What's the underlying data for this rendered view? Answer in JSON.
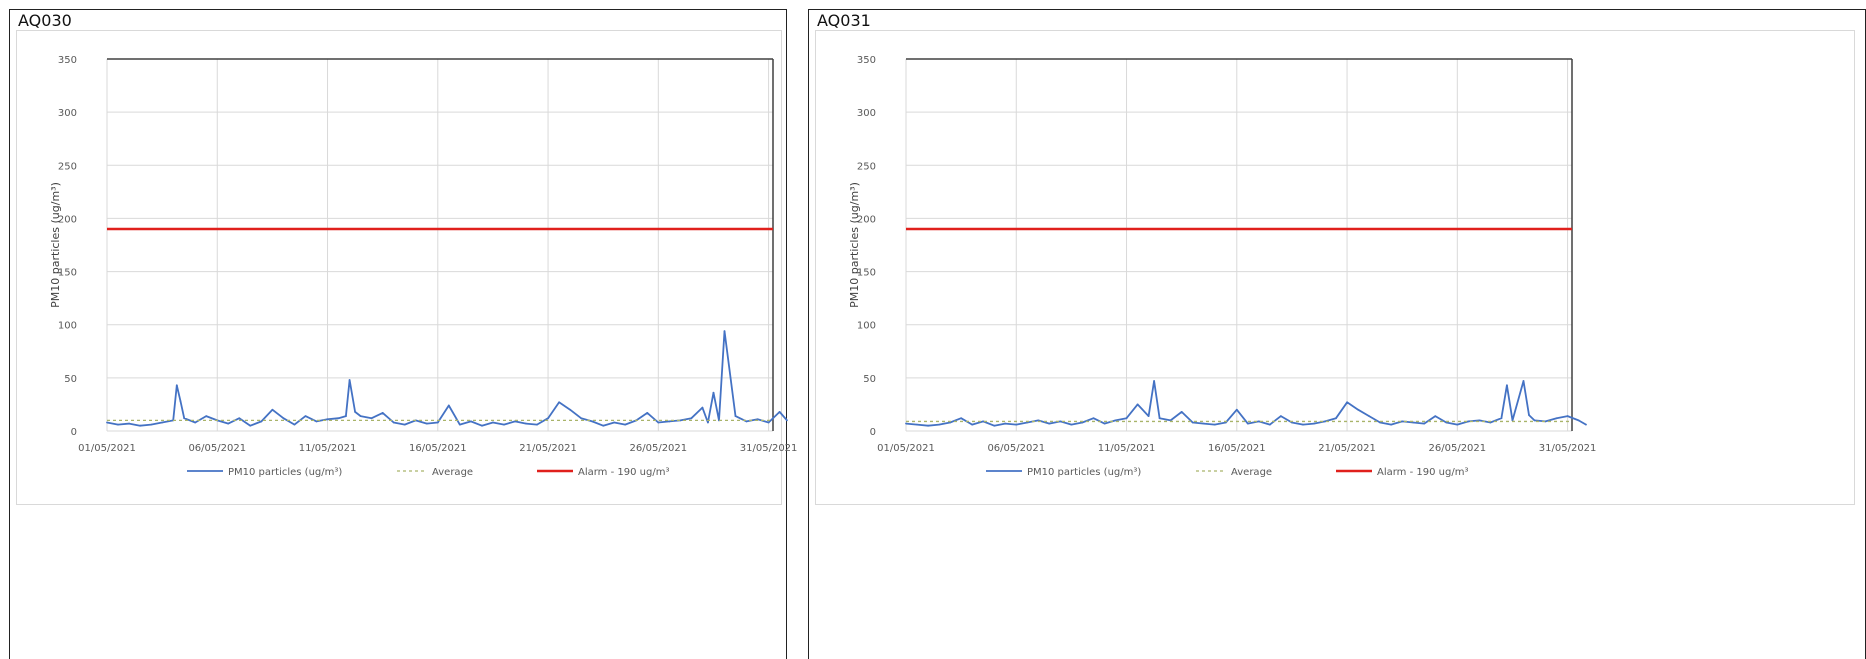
{
  "panels": [
    {
      "label": "AQ030",
      "chart_data": {
        "type": "line",
        "title": "",
        "xlabel": "",
        "ylabel": "PM10 particles (ug/m³)",
        "ylim": [
          0,
          350
        ],
        "yticks": [
          0,
          50,
          100,
          150,
          200,
          250,
          300,
          350
        ],
        "xlim": [
          "2021-05-01",
          "2021-05-31"
        ],
        "xtick_labels": [
          "01/05/2021",
          "06/05/2021",
          "11/05/2021",
          "16/05/2021",
          "21/05/2021",
          "26/05/2021",
          "31/05/2021"
        ],
        "grid": true,
        "legend_position": "bottom",
        "series": [
          {
            "name": "PM10 particles (ug/m³)",
            "style": "solid",
            "color": "#4472c4",
            "x": [
              "2021-05-01 00:00",
              "2021-05-01 12:00",
              "2021-05-02 00:00",
              "2021-05-02 12:00",
              "2021-05-03 00:00",
              "2021-05-03 12:00",
              "2021-05-04 00:00",
              "2021-05-04 04:00",
              "2021-05-04 08:00",
              "2021-05-04 12:00",
              "2021-05-05 00:00",
              "2021-05-05 12:00",
              "2021-05-06 00:00",
              "2021-05-06 12:00",
              "2021-05-07 00:00",
              "2021-05-07 12:00",
              "2021-05-08 00:00",
              "2021-05-08 12:00",
              "2021-05-09 00:00",
              "2021-05-09 12:00",
              "2021-05-10 00:00",
              "2021-05-10 12:00",
              "2021-05-11 00:00",
              "2021-05-11 12:00",
              "2021-05-11 20:00",
              "2021-05-12 00:00",
              "2021-05-12 06:00",
              "2021-05-12 12:00",
              "2021-05-13 00:00",
              "2021-05-13 12:00",
              "2021-05-14 00:00",
              "2021-05-14 12:00",
              "2021-05-15 00:00",
              "2021-05-15 12:00",
              "2021-05-16 00:00",
              "2021-05-16 12:00",
              "2021-05-17 00:00",
              "2021-05-17 12:00",
              "2021-05-18 00:00",
              "2021-05-18 12:00",
              "2021-05-19 00:00",
              "2021-05-19 12:00",
              "2021-05-20 00:00",
              "2021-05-20 12:00",
              "2021-05-21 00:00",
              "2021-05-21 12:00",
              "2021-05-22 00:00",
              "2021-05-22 12:00",
              "2021-05-23 00:00",
              "2021-05-23 12:00",
              "2021-05-24 00:00",
              "2021-05-24 12:00",
              "2021-05-25 00:00",
              "2021-05-25 12:00",
              "2021-05-26 00:00",
              "2021-05-26 12:00",
              "2021-05-27 00:00",
              "2021-05-27 12:00",
              "2021-05-28 00:00",
              "2021-05-28 06:00",
              "2021-05-28 12:00",
              "2021-05-28 18:00",
              "2021-05-29 00:00",
              "2021-05-29 12:00",
              "2021-05-30 00:00",
              "2021-05-30 12:00",
              "2021-05-31 00:00",
              "2021-05-31 12:00",
              "2021-05-31 20:00"
            ],
            "y": [
              8,
              6,
              7,
              5,
              6,
              8,
              10,
              43,
              28,
              12,
              8,
              14,
              10,
              7,
              12,
              5,
              9,
              20,
              12,
              6,
              14,
              9,
              11,
              12,
              14,
              48,
              18,
              14,
              12,
              17,
              8,
              6,
              10,
              7,
              8,
              24,
              6,
              9,
              5,
              8,
              6,
              9,
              7,
              6,
              12,
              27,
              20,
              12,
              9,
              5,
              8,
              6,
              10,
              17,
              8,
              9,
              10,
              12,
              22,
              8,
              36,
              10,
              94,
              14,
              9,
              11,
              8,
              18,
              10
            ]
          },
          {
            "name": "Average",
            "style": "dashed",
            "color": "#a9b46a",
            "value": 10
          },
          {
            "name": "Alarm - 190 ug/m³",
            "style": "solid",
            "color": "#e0201c",
            "value": 190
          }
        ]
      }
    },
    {
      "label": "AQ031",
      "chart_data": {
        "type": "line",
        "title": "",
        "xlabel": "",
        "ylabel": "PM10 particles (ug/m³)",
        "ylim": [
          0,
          350
        ],
        "yticks": [
          0,
          50,
          100,
          150,
          200,
          250,
          300,
          350
        ],
        "xlim": [
          "2021-05-01",
          "2021-05-31"
        ],
        "xtick_labels": [
          "01/05/2021",
          "06/05/2021",
          "11/05/2021",
          "16/05/2021",
          "21/05/2021",
          "26/05/2021",
          "31/05/2021"
        ],
        "grid": true,
        "legend_position": "bottom",
        "series": [
          {
            "name": "PM10 particles (ug/m³)",
            "style": "solid",
            "color": "#4472c4",
            "x": [
              "2021-05-01 00:00",
              "2021-05-01 12:00",
              "2021-05-02 00:00",
              "2021-05-02 12:00",
              "2021-05-03 00:00",
              "2021-05-03 12:00",
              "2021-05-04 00:00",
              "2021-05-04 12:00",
              "2021-05-05 00:00",
              "2021-05-05 12:00",
              "2021-05-06 00:00",
              "2021-05-06 12:00",
              "2021-05-07 00:00",
              "2021-05-07 12:00",
              "2021-05-08 00:00",
              "2021-05-08 12:00",
              "2021-05-09 00:00",
              "2021-05-09 12:00",
              "2021-05-10 00:00",
              "2021-05-10 12:00",
              "2021-05-11 00:00",
              "2021-05-11 12:00",
              "2021-05-12 00:00",
              "2021-05-12 06:00",
              "2021-05-12 12:00",
              "2021-05-13 00:00",
              "2021-05-13 12:00",
              "2021-05-14 00:00",
              "2021-05-14 12:00",
              "2021-05-15 00:00",
              "2021-05-15 12:00",
              "2021-05-16 00:00",
              "2021-05-16 12:00",
              "2021-05-17 00:00",
              "2021-05-17 12:00",
              "2021-05-18 00:00",
              "2021-05-18 12:00",
              "2021-05-19 00:00",
              "2021-05-19 12:00",
              "2021-05-20 00:00",
              "2021-05-20 12:00",
              "2021-05-21 00:00",
              "2021-05-21 12:00",
              "2021-05-22 00:00",
              "2021-05-22 12:00",
              "2021-05-23 00:00",
              "2021-05-23 12:00",
              "2021-05-24 00:00",
              "2021-05-24 12:00",
              "2021-05-25 00:00",
              "2021-05-25 12:00",
              "2021-05-26 00:00",
              "2021-05-26 12:00",
              "2021-05-27 00:00",
              "2021-05-27 12:00",
              "2021-05-28 00:00",
              "2021-05-28 06:00",
              "2021-05-28 12:00",
              "2021-05-29 00:00",
              "2021-05-29 06:00",
              "2021-05-29 12:00",
              "2021-05-30 00:00",
              "2021-05-30 12:00",
              "2021-05-31 00:00",
              "2021-05-31 12:00",
              "2021-05-31 20:00"
            ],
            "y": [
              7,
              6,
              5,
              6,
              8,
              12,
              6,
              9,
              5,
              7,
              6,
              8,
              10,
              7,
              9,
              6,
              8,
              12,
              7,
              10,
              12,
              25,
              14,
              47,
              12,
              10,
              18,
              8,
              7,
              6,
              8,
              20,
              7,
              9,
              6,
              14,
              8,
              6,
              7,
              9,
              12,
              27,
              20,
              14,
              8,
              6,
              9,
              8,
              7,
              14,
              8,
              6,
              9,
              10,
              8,
              12,
              43,
              10,
              47,
              15,
              10,
              9,
              12,
              14,
              10,
              6
            ]
          },
          {
            "name": "Average",
            "style": "dashed",
            "color": "#a9b46a",
            "value": 9
          },
          {
            "name": "Alarm - 190 ug/m³",
            "style": "solid",
            "color": "#e0201c",
            "value": 190
          }
        ]
      }
    }
  ]
}
